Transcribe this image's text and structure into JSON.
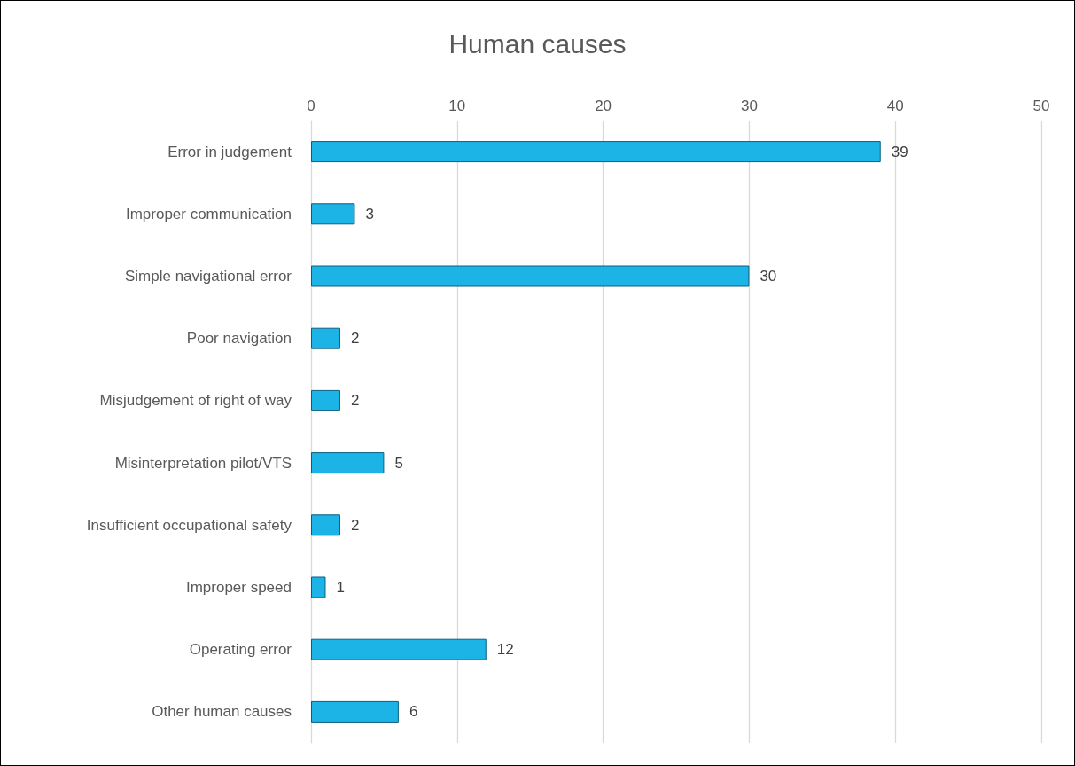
{
  "chart_data": {
    "type": "bar",
    "orientation": "horizontal",
    "title": "Human causes",
    "categories": [
      "Error in judgement",
      "Improper communication",
      "Simple navigational error",
      "Poor navigation",
      "Misjudgement of right of way",
      "Misinterpretation pilot/VTS",
      "Insufficient occupational safety",
      "Improper speed",
      "Operating error",
      "Other human causes"
    ],
    "values": [
      39,
      3,
      30,
      2,
      2,
      5,
      2,
      1,
      12,
      6
    ],
    "color": "#1cb4e6",
    "xlim": [
      0,
      50
    ],
    "xticks": [
      0,
      10,
      20,
      30,
      40,
      50
    ],
    "grid": "x",
    "data_labels": true
  }
}
